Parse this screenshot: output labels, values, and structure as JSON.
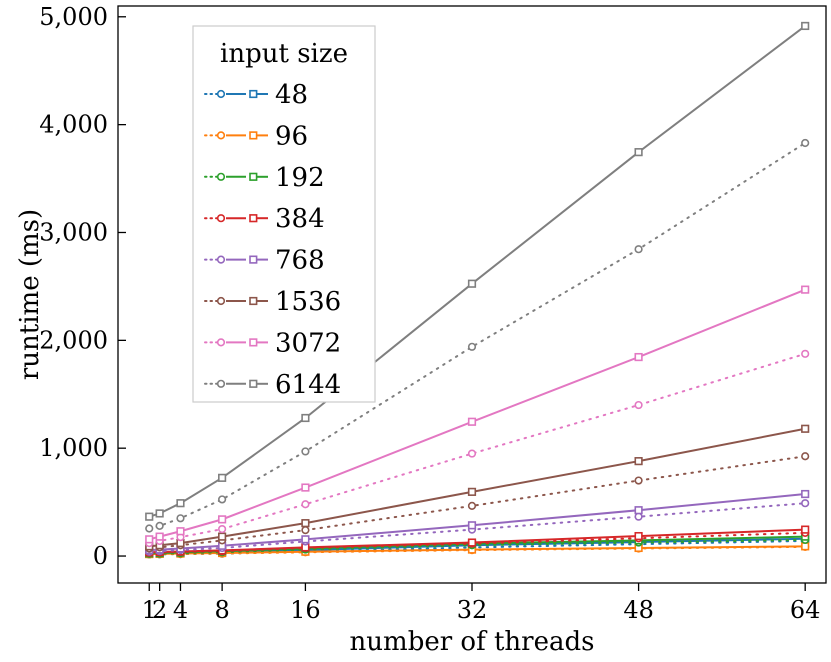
{
  "chart_data": {
    "type": "line",
    "xlabel": "number of threads",
    "ylabel": "runtime (ms)",
    "x": [
      1,
      2,
      4,
      8,
      16,
      32,
      48,
      64
    ],
    "x_ticks": [
      1,
      2,
      4,
      8,
      16,
      32,
      48,
      64
    ],
    "y_ticks": [
      0,
      1000,
      2000,
      3000,
      4000,
      5000
    ],
    "y_tick_labels": [
      "0",
      "1,000",
      "2,000",
      "3,000",
      "4,000",
      "5,000"
    ],
    "xlim": [
      -2,
      66
    ],
    "ylim": [
      -250,
      5100
    ],
    "grid": false,
    "legend": {
      "title": "input size",
      "placement": "top-left"
    },
    "series": [
      {
        "name": "48",
        "color": "#1f77b4",
        "circle": [
          15,
          16,
          18,
          22,
          40,
          80,
          110,
          140
        ],
        "square": [
          20,
          22,
          26,
          34,
          55,
          100,
          130,
          160
        ]
      },
      {
        "name": "96",
        "color": "#ff7f0e",
        "circle": [
          16,
          17,
          19,
          23,
          35,
          55,
          70,
          85
        ],
        "square": [
          18,
          20,
          23,
          28,
          40,
          60,
          75,
          90
        ]
      },
      {
        "name": "192",
        "color": "#2ca02c",
        "circle": [
          20,
          22,
          26,
          35,
          60,
          100,
          125,
          150
        ],
        "square": [
          25,
          28,
          33,
          45,
          70,
          115,
          145,
          180
        ]
      },
      {
        "name": "384",
        "color": "#d62728",
        "circle": [
          30,
          33,
          38,
          45,
          75,
          115,
          165,
          215
        ],
        "square": [
          35,
          38,
          42,
          52,
          80,
          125,
          185,
          245
        ]
      },
      {
        "name": "768",
        "color": "#9467bd",
        "circle": [
          40,
          45,
          55,
          75,
          135,
          245,
          365,
          490
        ],
        "square": [
          55,
          60,
          70,
          95,
          155,
          285,
          425,
          575
        ]
      },
      {
        "name": "1536",
        "color": "#8c564b",
        "circle": [
          70,
          80,
          100,
          145,
          240,
          465,
          700,
          925
        ],
        "square": [
          90,
          100,
          120,
          180,
          305,
          595,
          880,
          1180
        ]
      },
      {
        "name": "3072",
        "color": "#e377c2",
        "circle": [
          120,
          140,
          175,
          250,
          480,
          950,
          1400,
          1875
        ],
        "square": [
          155,
          180,
          230,
          340,
          635,
          1245,
          1845,
          2470
        ]
      },
      {
        "name": "6144",
        "color": "#7f7f7f",
        "circle": [
          255,
          280,
          350,
          525,
          970,
          1940,
          2845,
          3830
        ],
        "square": [
          365,
          395,
          490,
          725,
          1280,
          2525,
          3745,
          4915
        ]
      }
    ]
  }
}
